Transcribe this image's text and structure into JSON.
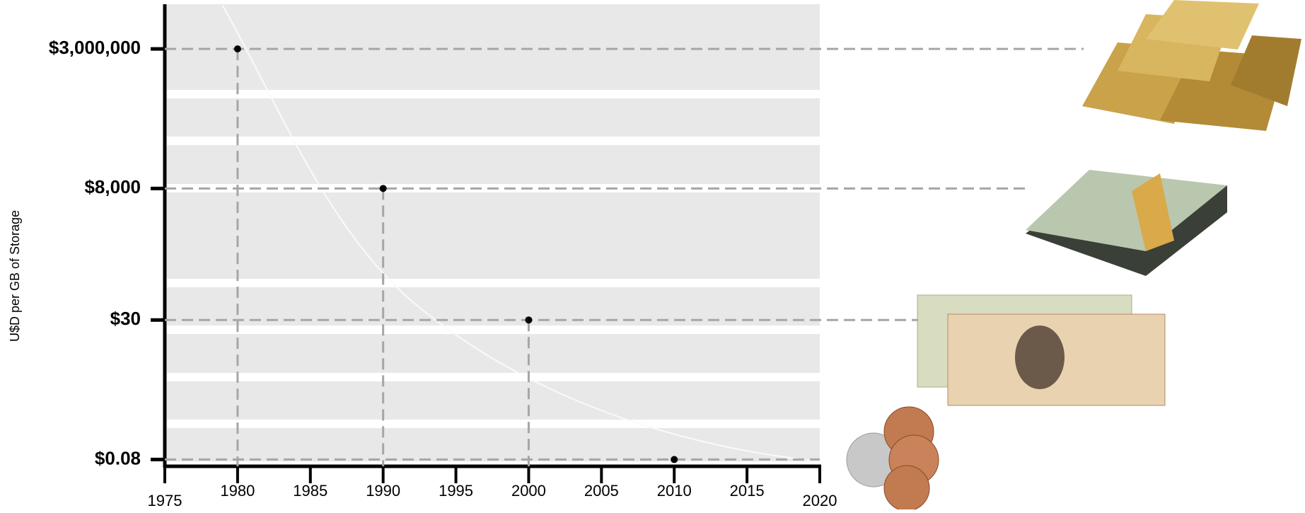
{
  "chart_data": {
    "type": "scatter",
    "y_label": "U$D per GB  of Storage",
    "x": [
      1980,
      1990,
      2000,
      2010
    ],
    "series": [
      {
        "color": "#000000",
        "values": [
          3000000,
          8000,
          30,
          0.08
        ]
      }
    ],
    "xlim": [
      1975,
      2020
    ],
    "xticks": [
      1975,
      1980,
      1985,
      1990,
      1995,
      2000,
      2005,
      2010,
      2015,
      2020
    ],
    "ylim": [
      0.06,
      20000000
    ],
    "log_y": true,
    "yticks": [
      {
        "value": 3000000,
        "label": "$3,000,000"
      },
      {
        "value": 8000,
        "label": "$8,000"
      },
      {
        "value": 30,
        "label": "$30"
      },
      {
        "value": 0.08,
        "label": "$0.08"
      }
    ]
  }
}
